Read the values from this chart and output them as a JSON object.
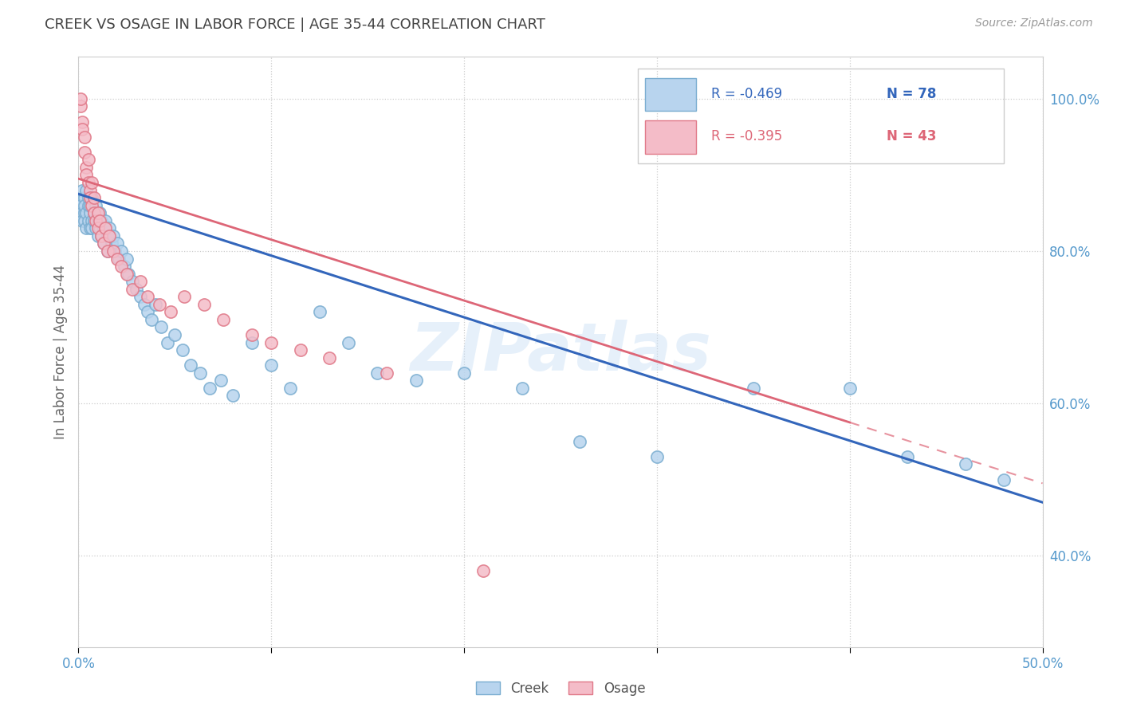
{
  "title": "CREEK VS OSAGE IN LABOR FORCE | AGE 35-44 CORRELATION CHART",
  "source": "Source: ZipAtlas.com",
  "ylabel": "In Labor Force | Age 35-44",
  "xlim": [
    0.0,
    0.5
  ],
  "ylim": [
    0.28,
    1.055
  ],
  "xticks": [
    0.0,
    0.1,
    0.2,
    0.3,
    0.4,
    0.5
  ],
  "xticklabels": [
    "0.0%",
    "",
    "",
    "",
    "",
    "50.0%"
  ],
  "yticks": [
    0.4,
    0.6,
    0.8,
    1.0
  ],
  "yticklabels": [
    "40.0%",
    "60.0%",
    "80.0%",
    "100.0%"
  ],
  "creek_color": "#b8d4ee",
  "creek_edge_color": "#7aadd0",
  "osage_color": "#f4bcc8",
  "osage_edge_color": "#e07888",
  "creek_line_color": "#3366bb",
  "osage_line_color": "#dd6677",
  "legend_creek_r": "-0.469",
  "legend_creek_n": "78",
  "legend_osage_r": "-0.395",
  "legend_osage_n": "43",
  "creek_R": -0.469,
  "creek_N": 78,
  "osage_R": -0.395,
  "osage_N": 43,
  "watermark": "ZIPatlas",
  "background_color": "#ffffff",
  "axis_label_color": "#5599cc",
  "title_color": "#444444",
  "creek_line_x0": 0.0,
  "creek_line_y0": 0.875,
  "creek_line_x1": 0.5,
  "creek_line_y1": 0.47,
  "osage_line_x0": 0.0,
  "osage_line_y0": 0.895,
  "osage_line_x1": 0.4,
  "osage_line_y1": 0.575,
  "creek_scatter_x": [
    0.001,
    0.001,
    0.002,
    0.002,
    0.002,
    0.003,
    0.003,
    0.003,
    0.003,
    0.004,
    0.004,
    0.004,
    0.005,
    0.005,
    0.005,
    0.006,
    0.006,
    0.006,
    0.007,
    0.007,
    0.007,
    0.008,
    0.008,
    0.009,
    0.009,
    0.01,
    0.01,
    0.011,
    0.011,
    0.012,
    0.012,
    0.013,
    0.013,
    0.014,
    0.015,
    0.015,
    0.016,
    0.017,
    0.018,
    0.019,
    0.02,
    0.021,
    0.022,
    0.024,
    0.025,
    0.026,
    0.028,
    0.03,
    0.032,
    0.034,
    0.036,
    0.038,
    0.04,
    0.043,
    0.046,
    0.05,
    0.054,
    0.058,
    0.063,
    0.068,
    0.074,
    0.08,
    0.09,
    0.1,
    0.11,
    0.125,
    0.14,
    0.155,
    0.175,
    0.2,
    0.23,
    0.26,
    0.3,
    0.35,
    0.4,
    0.43,
    0.46,
    0.48
  ],
  "creek_scatter_y": [
    0.87,
    0.86,
    0.88,
    0.85,
    0.84,
    0.87,
    0.85,
    0.86,
    0.84,
    0.88,
    0.85,
    0.83,
    0.86,
    0.84,
    0.87,
    0.85,
    0.83,
    0.86,
    0.87,
    0.84,
    0.83,
    0.85,
    0.84,
    0.86,
    0.83,
    0.84,
    0.82,
    0.85,
    0.83,
    0.84,
    0.82,
    0.83,
    0.81,
    0.84,
    0.82,
    0.8,
    0.83,
    0.81,
    0.82,
    0.8,
    0.81,
    0.79,
    0.8,
    0.78,
    0.79,
    0.77,
    0.76,
    0.75,
    0.74,
    0.73,
    0.72,
    0.71,
    0.73,
    0.7,
    0.68,
    0.69,
    0.67,
    0.65,
    0.64,
    0.62,
    0.63,
    0.61,
    0.68,
    0.65,
    0.62,
    0.72,
    0.68,
    0.64,
    0.63,
    0.64,
    0.62,
    0.55,
    0.53,
    0.62,
    0.62,
    0.53,
    0.52,
    0.5
  ],
  "osage_scatter_x": [
    0.001,
    0.001,
    0.002,
    0.002,
    0.003,
    0.003,
    0.004,
    0.004,
    0.005,
    0.005,
    0.006,
    0.006,
    0.007,
    0.007,
    0.008,
    0.008,
    0.009,
    0.01,
    0.01,
    0.011,
    0.012,
    0.013,
    0.014,
    0.015,
    0.016,
    0.018,
    0.02,
    0.022,
    0.025,
    0.028,
    0.032,
    0.036,
    0.042,
    0.048,
    0.055,
    0.065,
    0.075,
    0.09,
    0.1,
    0.115,
    0.13,
    0.16,
    0.21
  ],
  "osage_scatter_y": [
    0.99,
    1.0,
    0.97,
    0.96,
    0.95,
    0.93,
    0.91,
    0.9,
    0.92,
    0.89,
    0.88,
    0.87,
    0.89,
    0.86,
    0.87,
    0.85,
    0.84,
    0.85,
    0.83,
    0.84,
    0.82,
    0.81,
    0.83,
    0.8,
    0.82,
    0.8,
    0.79,
    0.78,
    0.77,
    0.75,
    0.76,
    0.74,
    0.73,
    0.72,
    0.74,
    0.73,
    0.71,
    0.69,
    0.68,
    0.67,
    0.66,
    0.64,
    0.38
  ]
}
